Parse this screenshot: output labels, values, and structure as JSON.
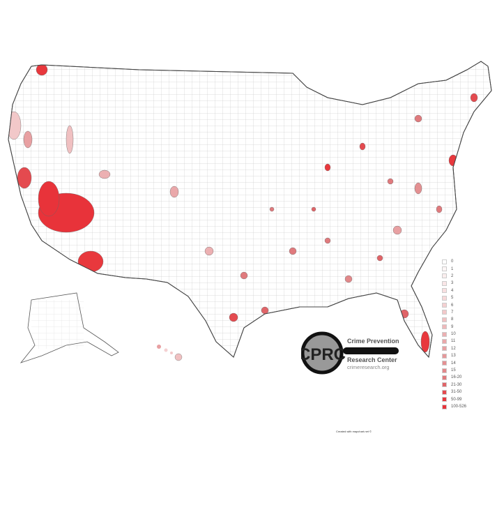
{
  "colors": {
    "accent": "#e8333a",
    "border": "#444444"
  },
  "legend": {
    "items": [
      {
        "label": "0",
        "color": "#ffffff"
      },
      {
        "label": "1",
        "color": "#fdf6f6"
      },
      {
        "label": "2",
        "color": "#fbeeee"
      },
      {
        "label": "3",
        "color": "#f9e6e7"
      },
      {
        "label": "4",
        "color": "#f8dfe0"
      },
      {
        "label": "5",
        "color": "#f6d8d9"
      },
      {
        "label": "6",
        "color": "#f4d0d1"
      },
      {
        "label": "7",
        "color": "#f2c8c9"
      },
      {
        "label": "8",
        "color": "#f0c0c1"
      },
      {
        "label": "9",
        "color": "#eeb8ba"
      },
      {
        "label": "10",
        "color": "#ecb0b2"
      },
      {
        "label": "11",
        "color": "#eaa8aa"
      },
      {
        "label": "12",
        "color": "#e8a0a2"
      },
      {
        "label": "13",
        "color": "#e6989a"
      },
      {
        "label": "14",
        "color": "#e49092"
      },
      {
        "label": "15",
        "color": "#e2888a"
      },
      {
        "label": "16-20",
        "color": "#e07a7d"
      },
      {
        "label": "21-30",
        "color": "#e06468"
      },
      {
        "label": "31-50",
        "color": "#e44a4f"
      },
      {
        "label": "50-99",
        "color": "#e8383d"
      },
      {
        "label": "100-526",
        "color": "#e8333a"
      }
    ]
  },
  "logo": {
    "initials": "CPRC",
    "line1": "Crime Prevention",
    "line2": "Research Center",
    "url": "crimeresearch.org"
  },
  "credit": "Created with mapchart.net ©"
}
